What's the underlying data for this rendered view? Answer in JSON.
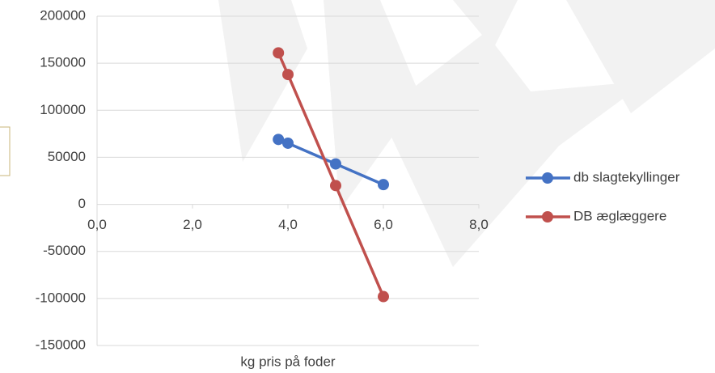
{
  "chart_data": {
    "type": "line",
    "x_label": "kg pris på foder",
    "xlim": [
      0,
      8
    ],
    "xticks": [
      {
        "value": 0,
        "label": "0,0"
      },
      {
        "value": 2,
        "label": "2,0"
      },
      {
        "value": 4,
        "label": "4,0"
      },
      {
        "value": 6,
        "label": "6,0"
      },
      {
        "value": 8,
        "label": "8,0"
      }
    ],
    "ylim": [
      -150000,
      200000
    ],
    "yticks": [
      -150000,
      -100000,
      -50000,
      0,
      50000,
      100000,
      150000,
      200000
    ],
    "grid": true,
    "legend": "right",
    "series": [
      {
        "name": "db slagtekyllinger",
        "color": "#4472c4",
        "x": [
          3.8,
          4.0,
          5.0,
          6.0
        ],
        "values": [
          69000,
          65000,
          43000,
          21000
        ]
      },
      {
        "name": "DB æglæggere",
        "color": "#c0504d",
        "x": [
          3.8,
          4.0,
          5.0,
          6.0
        ],
        "values": [
          161000,
          138000,
          20000,
          -98000
        ]
      }
    ]
  }
}
